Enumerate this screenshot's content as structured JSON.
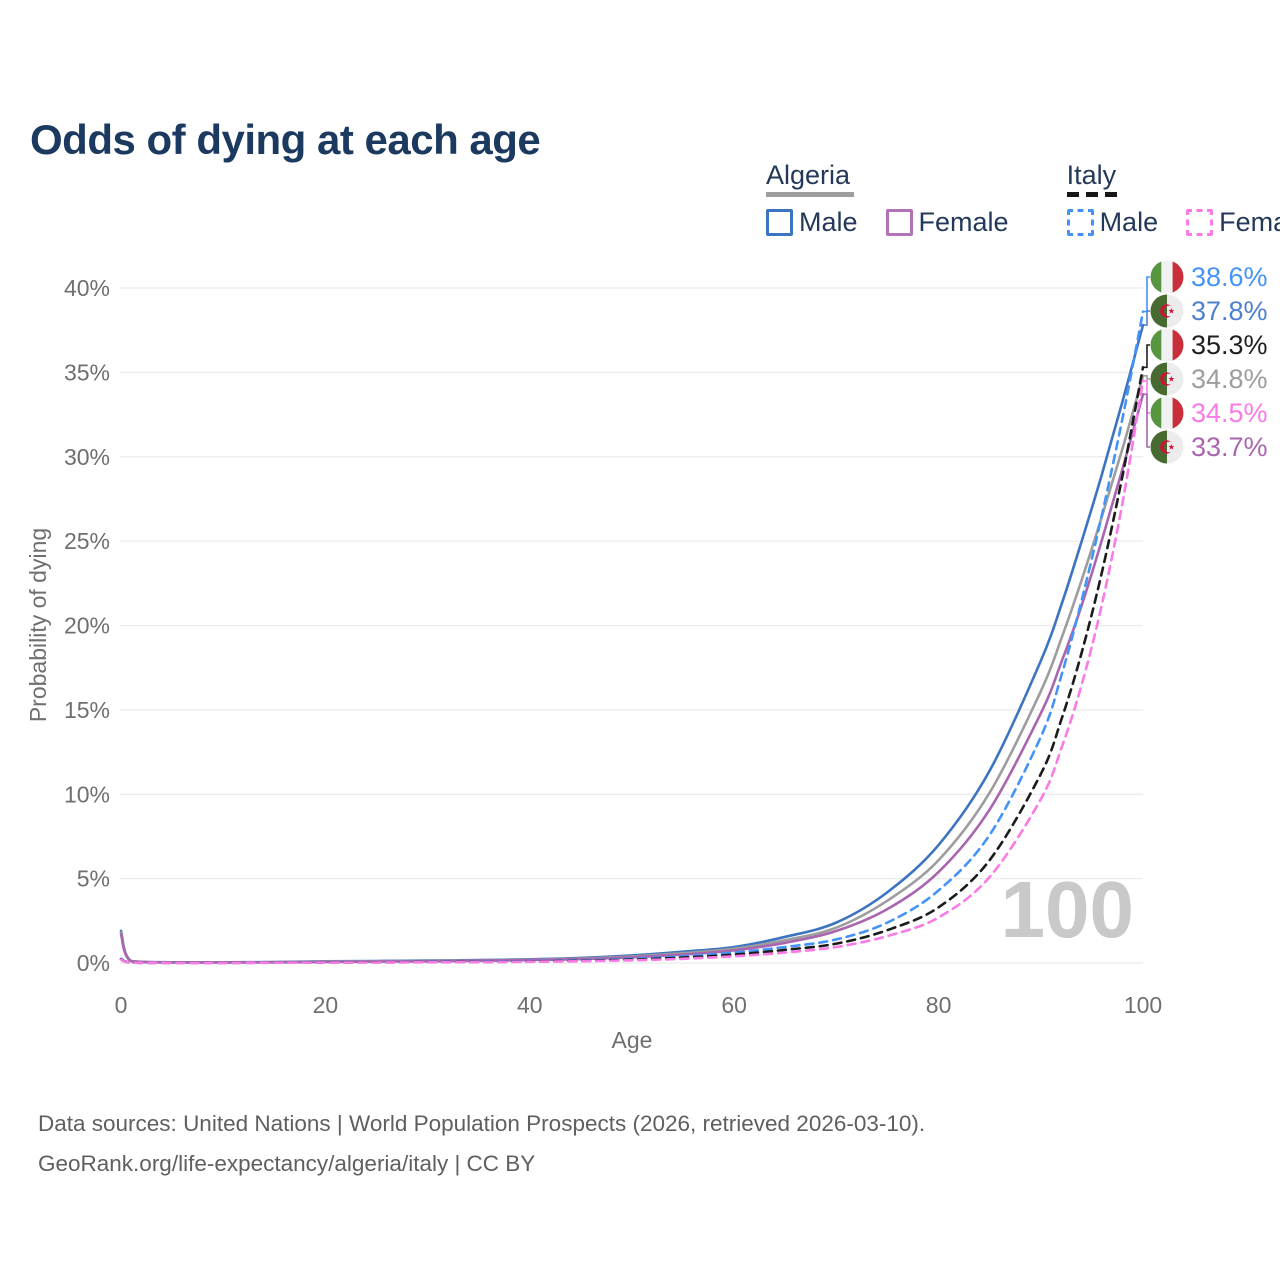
{
  "title": "Odds of dying at each age",
  "legend": {
    "groups": [
      {
        "title": "Algeria",
        "line_style": "solid",
        "underline_color": "#9e9e9e",
        "items": [
          {
            "label": "Male",
            "color": "#3d74c1",
            "dashed": false
          },
          {
            "label": "Female",
            "color": "#b272b6",
            "dashed": false
          }
        ]
      },
      {
        "title": "Italy",
        "line_style": "dashed",
        "underline_color": "#161616",
        "items": [
          {
            "label": "Male",
            "color": "#4493f8",
            "dashed": true
          },
          {
            "label": "Female",
            "color": "#fa7ae6",
            "dashed": true
          }
        ]
      }
    ]
  },
  "chart_data": {
    "type": "line",
    "title": "Odds of dying at each age",
    "xlabel": "Age",
    "ylabel": "Probability of dying",
    "xlim": [
      0,
      100
    ],
    "ylim": [
      0,
      40
    ],
    "grid": true,
    "x_tick_values": [
      0,
      20,
      40,
      60,
      80,
      100
    ],
    "y_tick_values": [
      0,
      5,
      10,
      15,
      20,
      25,
      30,
      35,
      40
    ],
    "y_tick_labels": [
      "0%",
      "5%",
      "10%",
      "15%",
      "20%",
      "25%",
      "30%",
      "35%",
      "40%"
    ],
    "ages": [
      0,
      1,
      5,
      10,
      15,
      20,
      25,
      30,
      35,
      40,
      45,
      50,
      55,
      60,
      65,
      70,
      75,
      80,
      85,
      90,
      92,
      94,
      96,
      98,
      100
    ],
    "series": [
      {
        "name": "Algeria Male",
        "color": "#3d74c1",
        "dash": null,
        "values": [
          1.9,
          0.12,
          0.04,
          0.04,
          0.06,
          0.1,
          0.12,
          0.14,
          0.17,
          0.22,
          0.3,
          0.45,
          0.67,
          0.95,
          1.55,
          2.4,
          4.2,
          7.0,
          11.4,
          17.9,
          21.2,
          25.0,
          29.0,
          33.3,
          37.8
        ]
      },
      {
        "name": "Algeria",
        "color": "#9d9d9d",
        "dash": null,
        "values": [
          1.8,
          0.11,
          0.035,
          0.035,
          0.05,
          0.08,
          0.1,
          0.12,
          0.15,
          0.19,
          0.26,
          0.39,
          0.58,
          0.85,
          1.35,
          2.1,
          3.7,
          6.1,
          10.1,
          16.1,
          19.2,
          22.7,
          26.5,
          30.5,
          34.8
        ]
      },
      {
        "name": "Algeria Female",
        "color": "#a965ae",
        "dash": null,
        "values": [
          1.7,
          0.1,
          0.03,
          0.03,
          0.04,
          0.06,
          0.08,
          0.1,
          0.13,
          0.17,
          0.23,
          0.34,
          0.5,
          0.75,
          1.2,
          1.9,
          3.2,
          5.4,
          9.1,
          14.8,
          17.8,
          21.2,
          25.1,
          29.3,
          33.7
        ]
      },
      {
        "name": "Italy Male",
        "color": "#4493f8",
        "dash": "8 6",
        "values": [
          0.25,
          0.02,
          0.01,
          0.01,
          0.02,
          0.04,
          0.05,
          0.06,
          0.08,
          0.11,
          0.16,
          0.25,
          0.4,
          0.62,
          0.95,
          1.4,
          2.4,
          4.3,
          7.6,
          13.4,
          17.0,
          21.5,
          26.6,
          32.3,
          38.6
        ]
      },
      {
        "name": "Italy",
        "color": "#1b1b1b",
        "dash": "8 6",
        "values": [
          0.22,
          0.018,
          0.009,
          0.009,
          0.016,
          0.03,
          0.04,
          0.05,
          0.065,
          0.09,
          0.13,
          0.2,
          0.32,
          0.5,
          0.78,
          1.15,
          1.95,
          3.3,
          6.1,
          11.2,
          14.4,
          18.4,
          23.2,
          28.9,
          35.3
        ]
      },
      {
        "name": "Italy Female",
        "color": "#fa7ae6",
        "dash": "8 6",
        "values": [
          0.2,
          0.015,
          0.008,
          0.008,
          0.012,
          0.025,
          0.032,
          0.04,
          0.052,
          0.072,
          0.105,
          0.16,
          0.25,
          0.4,
          0.62,
          0.95,
          1.6,
          2.7,
          5.1,
          9.7,
          12.7,
          16.5,
          21.3,
          27.3,
          34.5
        ]
      }
    ]
  },
  "end_labels": [
    {
      "series": "Italy Male",
      "value": "38.6%",
      "end_value": 38.6,
      "color": "#4493f8",
      "flag": "italy"
    },
    {
      "series": "Algeria Male",
      "value": "37.8%",
      "end_value": 37.8,
      "color": "#4f80cf",
      "flag": "algeria"
    },
    {
      "series": "Italy",
      "value": "35.3%",
      "end_value": 35.3,
      "color": "#1f1f1f",
      "flag": "italy"
    },
    {
      "series": "Algeria",
      "value": "34.8%",
      "end_value": 34.8,
      "color": "#9d9d9d",
      "flag": "algeria"
    },
    {
      "series": "Italy Female",
      "value": "34.5%",
      "end_value": 34.5,
      "color": "#fa7ae6",
      "flag": "italy"
    },
    {
      "series": "Algeria Female",
      "value": "33.7%",
      "end_value": 33.7,
      "color": "#a965ae",
      "flag": "algeria"
    }
  ],
  "flags": {
    "italy": {
      "colors": [
        "#579540",
        "#f1f1f1",
        "#c92f3b"
      ]
    },
    "algeria": {
      "colors": [
        "#466a2f",
        "#ececec",
        "#d21034"
      ]
    }
  },
  "watermark": {
    "value": "100"
  },
  "footer": {
    "line1": "Data sources: United Nations | World Population Prospects (2026, retrieved 2026-03-10).",
    "line2": "GeoRank.org/life-expectancy/algeria/italy | CC BY"
  }
}
